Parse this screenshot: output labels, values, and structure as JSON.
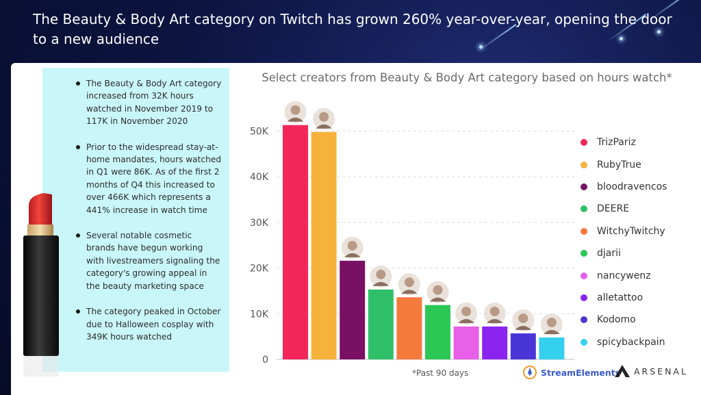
{
  "headline": "The Beauty & Body Art category on Twitch has grown 260% year-over-year, opening the door to a new audience",
  "notes": [
    "The Beauty & Body Art category increased from 32K hours watched in November 2019 to 117K in November 2020",
    "Prior to the widespread stay-at-home mandates, hours watched in Q1 were 86K. As of the first 2 months of Q4 this increased to over 466K which represents a 441% increase in watch time",
    "Several notable cosmetic brands have begun working with livestreamers signaling the category's growing appeal in the beauty marketing space",
    "The category peaked in October due to Halloween cosplay with 349K hours watched"
  ],
  "footnote": "*Past 90 days",
  "brands": {
    "left": "StreamElements",
    "right": "ARSENAL"
  },
  "chart_data": {
    "type": "bar",
    "title": "Select creators from Beauty & Body Art category based on hours watch*",
    "categories": [
      "TrizPariz",
      "RubyTrue",
      "bloodravencos",
      "DEERE",
      "WitchyTwitchy",
      "djarii",
      "nancywenz",
      "alletattoo",
      "Kodomo",
      "spicybackpain"
    ],
    "values": [
      51300,
      49800,
      21600,
      15300,
      13600,
      11900,
      7200,
      7200,
      5700,
      4800
    ],
    "colors": [
      "#f3265a",
      "#f7b23c",
      "#7a1063",
      "#2fbf69",
      "#f47a3c",
      "#2cc855",
      "#e85fe8",
      "#8b24ef",
      "#4a35d6",
      "#36d0ef"
    ],
    "yticks": [
      "0",
      "10K",
      "20K",
      "30K",
      "40K",
      "50K"
    ],
    "ylim": [
      0,
      55000
    ],
    "legend_position": "right",
    "grid": "dashed-horizontal"
  }
}
